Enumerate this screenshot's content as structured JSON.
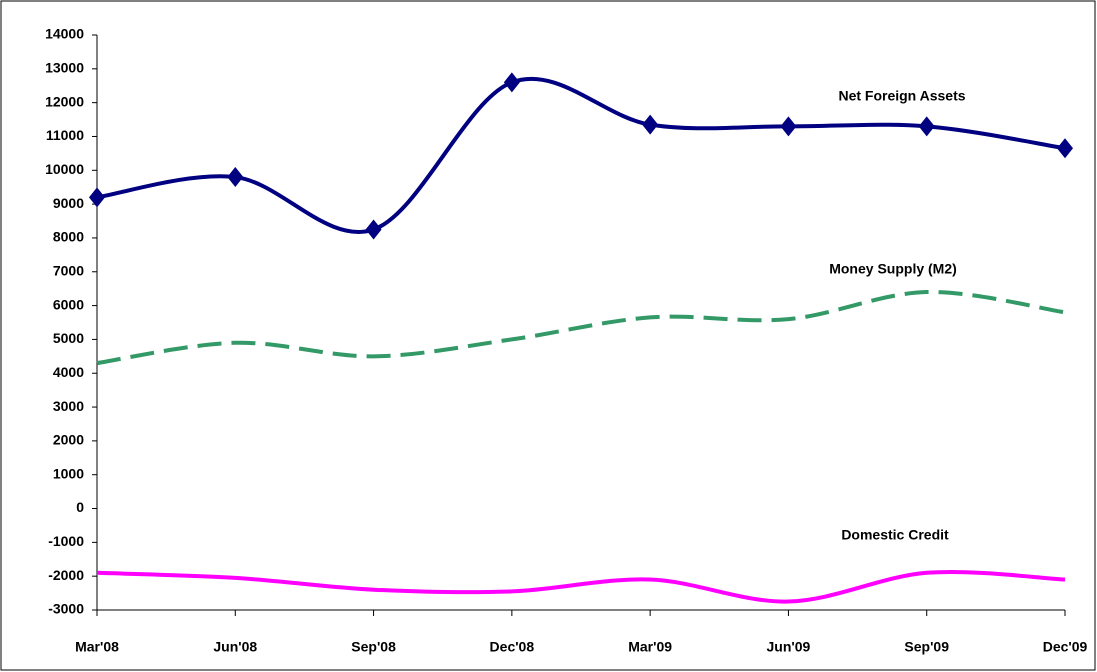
{
  "chart_data": {
    "type": "line",
    "categories": [
      "Mar'08",
      "Jun'08",
      "Sep'08",
      "Dec'08",
      "Mar'09",
      "Jun'09",
      "Sep'09",
      "Dec'09"
    ],
    "series": [
      {
        "name": "Net Foreign Assets",
        "color": "#000080",
        "line_style": "solid",
        "marker": "diamond",
        "values": [
          9200,
          9800,
          8250,
          12600,
          11350,
          11300,
          11300,
          10650
        ]
      },
      {
        "name": "Money Supply (M2)",
        "color": "#339966",
        "line_style": "dashed",
        "marker": "none",
        "values": [
          4300,
          4900,
          4500,
          5000,
          5650,
          5600,
          6400,
          5800
        ]
      },
      {
        "name": "Domestic Credit",
        "color": "#ff00ff",
        "line_style": "solid",
        "marker": "none",
        "values": [
          -1900,
          -2050,
          -2400,
          -2450,
          -2100,
          -2750,
          -1900,
          -2100
        ]
      }
    ],
    "ylim": [
      -3000,
      14000
    ],
    "yticks": [
      -3000,
      -2000,
      -1000,
      0,
      1000,
      2000,
      3000,
      4000,
      5000,
      6000,
      7000,
      8000,
      9000,
      10000,
      11000,
      12000,
      13000,
      14000
    ],
    "grid": false,
    "smooth": true
  }
}
